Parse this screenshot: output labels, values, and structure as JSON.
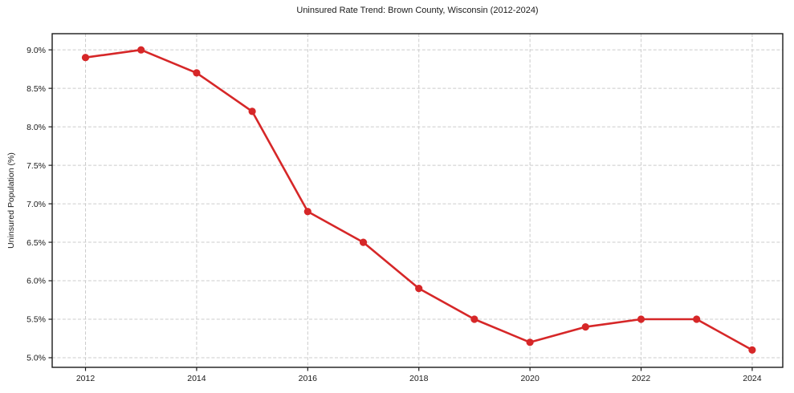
{
  "chart_data": {
    "type": "line",
    "title": "Uninsured Rate Trend: Brown County, Wisconsin (2012-2024)",
    "xlabel": "",
    "ylabel": "Uninsured Population (%)",
    "x": [
      2012,
      2013,
      2014,
      2015,
      2016,
      2017,
      2018,
      2019,
      2020,
      2021,
      2022,
      2023,
      2024
    ],
    "y": [
      8.9,
      9.0,
      8.7,
      8.2,
      6.9,
      6.5,
      5.9,
      5.5,
      5.2,
      5.4,
      5.5,
      5.5,
      5.1
    ],
    "x_ticks": [
      2012,
      2014,
      2016,
      2018,
      2020,
      2022,
      2024
    ],
    "y_ticks": [
      5.0,
      5.5,
      6.0,
      6.5,
      7.0,
      7.5,
      8.0,
      8.5,
      9.0
    ],
    "y_tick_suffix": "%",
    "y_tick_decimals": 1,
    "xlim": [
      2011.4,
      2024.55
    ],
    "ylim": [
      4.875,
      9.21
    ],
    "grid": true,
    "legend_position": "none",
    "line_color": "#d62728",
    "marker": "circle",
    "grid_color": "#cccccc",
    "axis_color": "#1a1a1a",
    "text_color": "#1a1a1a"
  }
}
